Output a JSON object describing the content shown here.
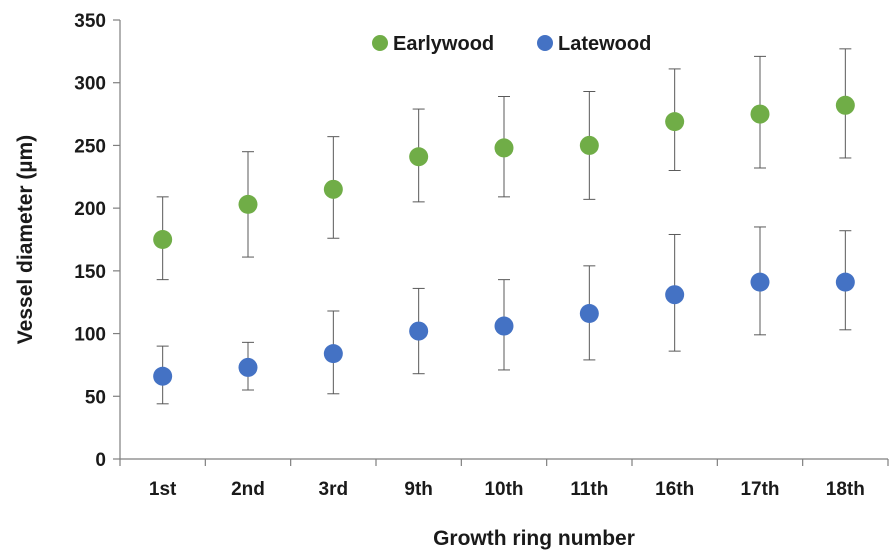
{
  "chart_data": {
    "type": "scatter",
    "categories": [
      "1st",
      "2nd",
      "3rd",
      "9th",
      "10th",
      "11th",
      "16th",
      "17th",
      "18th"
    ],
    "series": [
      {
        "name": "Earlywood",
        "color": "#70ad47",
        "values": [
          175,
          203,
          215,
          241,
          248,
          250,
          269,
          275,
          282
        ],
        "err_low": [
          143,
          161,
          176,
          205,
          209,
          207,
          230,
          232,
          240
        ],
        "err_high": [
          209,
          245,
          257,
          279,
          289,
          293,
          311,
          321,
          327
        ]
      },
      {
        "name": "Latewood",
        "color": "#4472c4",
        "values": [
          66,
          73,
          84,
          102,
          106,
          116,
          131,
          141,
          141
        ],
        "err_low": [
          44,
          55,
          52,
          68,
          71,
          79,
          86,
          99,
          103
        ],
        "err_high": [
          90,
          93,
          118,
          136,
          143,
          154,
          179,
          185,
          182
        ]
      }
    ],
    "title": "",
    "xlabel": "Growth ring number",
    "ylabel": "Vessel diameter (µm)",
    "ylim": [
      0,
      350
    ],
    "yticks": [
      0,
      50,
      100,
      150,
      200,
      250,
      300,
      350
    ],
    "grid": false,
    "legend_position": "top-center"
  }
}
